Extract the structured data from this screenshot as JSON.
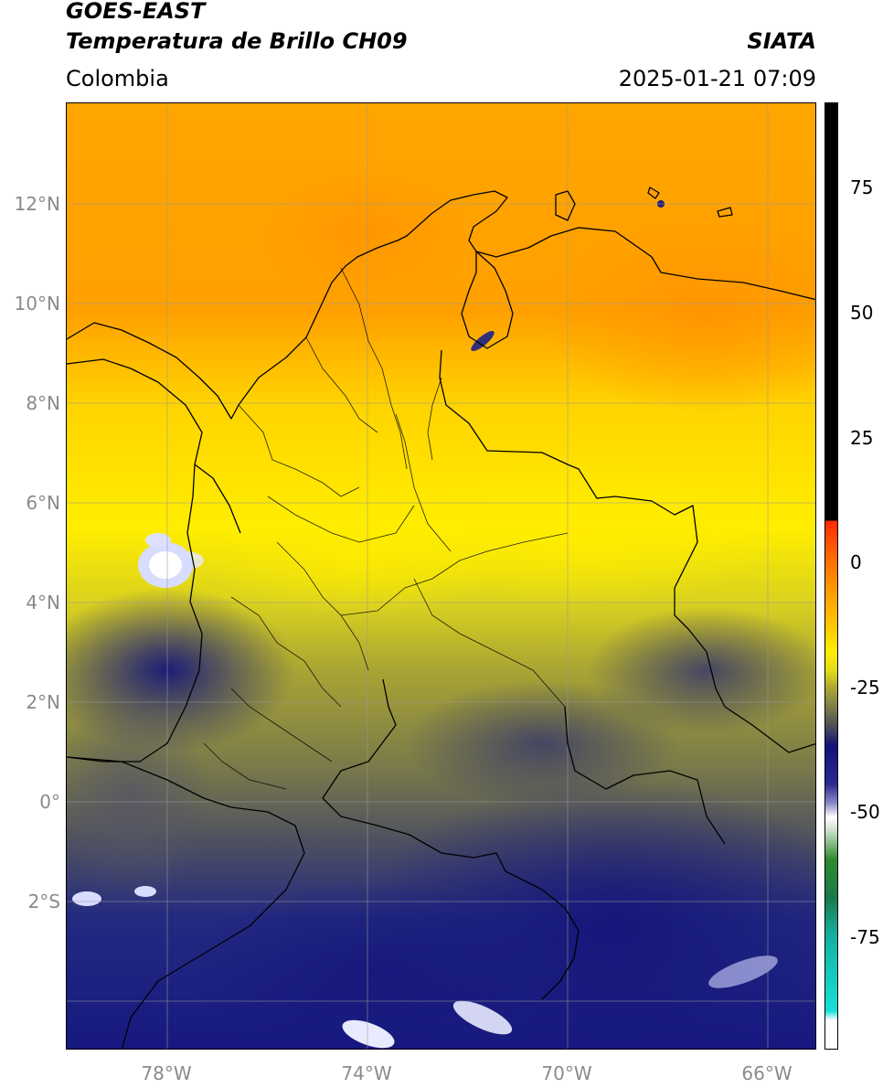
{
  "header": {
    "satellite": "GOES-EAST",
    "product": "Temperatura de Brillo CH09",
    "organization": "SIATA",
    "region": "Colombia",
    "datetime": "2025-01-21 07:09"
  },
  "map": {
    "lat_ticks": [
      "12°N",
      "10°N",
      "8°N",
      "6°N",
      "4°N",
      "2°N",
      "0°",
      "2°S"
    ],
    "lon_ticks": [
      "78°W",
      "74°W",
      "70°W",
      "66°W"
    ],
    "extent": {
      "lon_min": -80,
      "lon_max": -65,
      "lat_min": -5,
      "lat_max": 14
    },
    "graticule": true
  },
  "colorbar": {
    "ticks": [
      "75",
      "50",
      "25",
      "0",
      "-25",
      "-50",
      "-75"
    ],
    "colors": {
      "black": "#000000",
      "red": "#ff2a00",
      "orange": "#ff9a00",
      "yellow": "#ffee00",
      "olive": "#9a9a33",
      "gray": "#4a4a5a",
      "navy": "#12127a",
      "white": "#ffffff",
      "green": "#2e8a2e",
      "cyan": "#16e0d8"
    }
  }
}
